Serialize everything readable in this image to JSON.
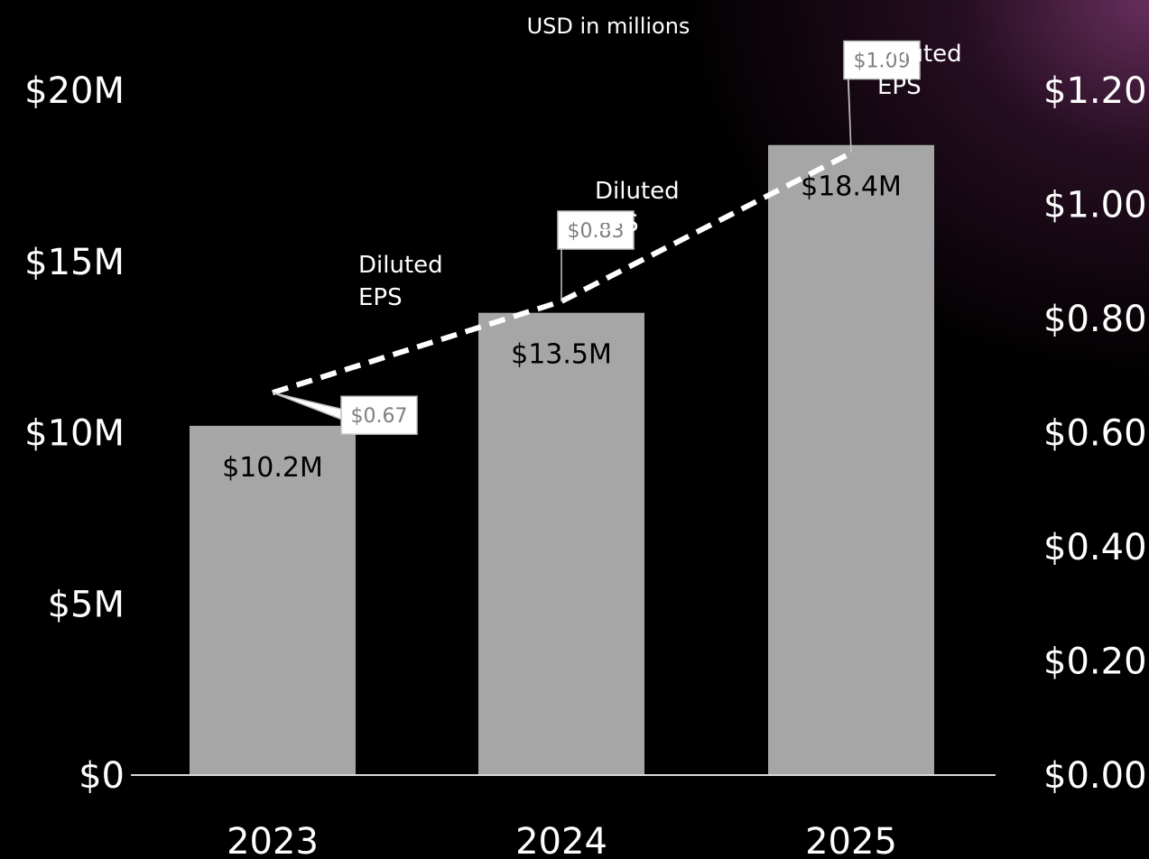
{
  "chart_data": {
    "type": "bar",
    "subtitle": "USD in millions",
    "categories": [
      "2023",
      "2024",
      "2025"
    ],
    "series": [
      {
        "kind": "bar",
        "values": [
          10.2,
          13.5,
          18.4
        ],
        "labels": [
          "$10.2M",
          "$13.5M",
          "$18.4M"
        ],
        "color": "#a6a6a6"
      },
      {
        "name": "Diluted EPS",
        "kind": "line",
        "style": "dashed",
        "values": [
          0.67,
          0.83,
          1.09
        ],
        "labels": [
          "$0.67",
          "$0.83",
          "$1.09"
        ],
        "color": "#ffffff"
      }
    ],
    "y_left": {
      "ylim": [
        0,
        20
      ],
      "ticks": [
        0,
        5,
        10,
        15,
        20
      ],
      "tick_labels": [
        "$0",
        "$5M",
        "$10M",
        "$15M",
        "$20M"
      ]
    },
    "y_right": {
      "ylim": [
        0,
        1.2
      ],
      "ticks": [
        0,
        0.2,
        0.4,
        0.6,
        0.8,
        1.0,
        1.2
      ],
      "tick_labels": [
        "$0.00",
        "$0.20",
        "$0.40",
        "$0.60",
        "$0.80",
        "$1.00",
        "$1.20"
      ]
    },
    "series_label_lines": [
      "Diluted",
      "EPS"
    ],
    "grid": false,
    "legend": "none"
  }
}
